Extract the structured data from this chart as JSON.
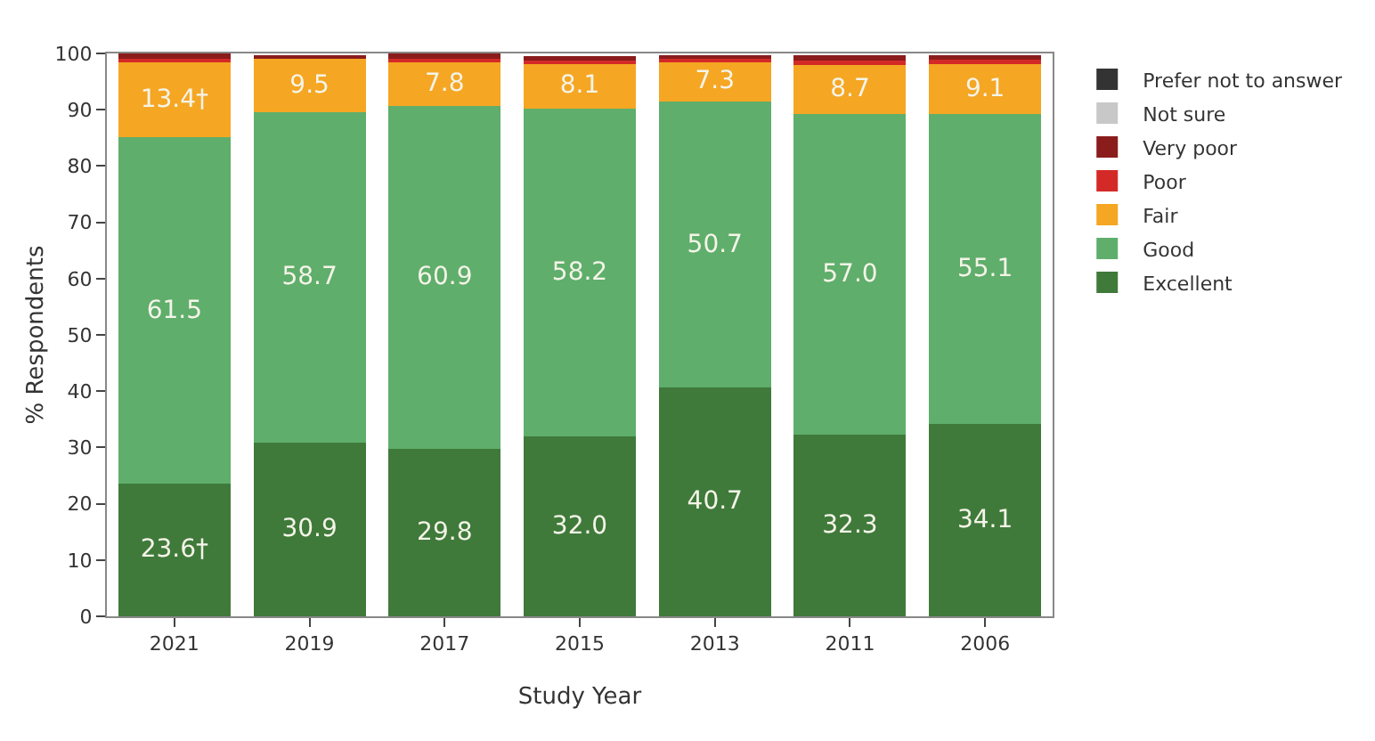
{
  "chart_data": {
    "type": "bar",
    "stacked": true,
    "xlabel": "Study Year",
    "ylabel": "% Respondents",
    "categories": [
      "2021",
      "2019",
      "2017",
      "2015",
      "2013",
      "2011",
      "2006"
    ],
    "ylim": [
      0,
      100
    ],
    "yticks": [
      0,
      10,
      20,
      30,
      40,
      50,
      60,
      70,
      80,
      90,
      100
    ],
    "grid": false,
    "legend": "right",
    "series": [
      {
        "name": "Excellent",
        "color": "#3f7a3a",
        "values": [
          23.6,
          30.9,
          29.8,
          32.0,
          40.7,
          32.3,
          34.1
        ],
        "value_labels": [
          "23.6†",
          "30.9",
          "29.8",
          "32.0",
          "40.7",
          "32.3",
          "34.1"
        ]
      },
      {
        "name": "Good",
        "color": "#5fae6b",
        "values": [
          61.5,
          58.7,
          60.9,
          58.2,
          50.7,
          57.0,
          55.1
        ],
        "value_labels": [
          "61.5",
          "58.7",
          "60.9",
          "58.2",
          "50.7",
          "57.0",
          "55.1"
        ]
      },
      {
        "name": "Fair",
        "color": "#f5a623",
        "values": [
          13.4,
          9.5,
          7.8,
          8.1,
          7.3,
          8.7,
          9.1
        ],
        "value_labels": [
          "13.4†",
          "9.5",
          "7.8",
          "8.1",
          "7.3",
          "8.7",
          "9.1"
        ]
      },
      {
        "name": "Poor",
        "color": "#d42a27",
        "values": [
          0.5,
          null,
          0.5,
          0.5,
          0.4,
          0.7,
          0.6
        ]
      },
      {
        "name": "Very poor",
        "color": "#8b1c1c",
        "values": [
          1.0,
          0.5,
          1.0,
          0.8,
          0.6,
          1.0,
          0.8
        ]
      },
      {
        "name": "Not sure",
        "color": "#c8c8c8",
        "values": [
          null,
          null,
          null,
          null,
          null,
          null,
          null
        ]
      },
      {
        "name": "Prefer not to answer",
        "color": "#333333",
        "values": [
          null,
          null,
          null,
          null,
          null,
          null,
          null
        ]
      }
    ]
  }
}
